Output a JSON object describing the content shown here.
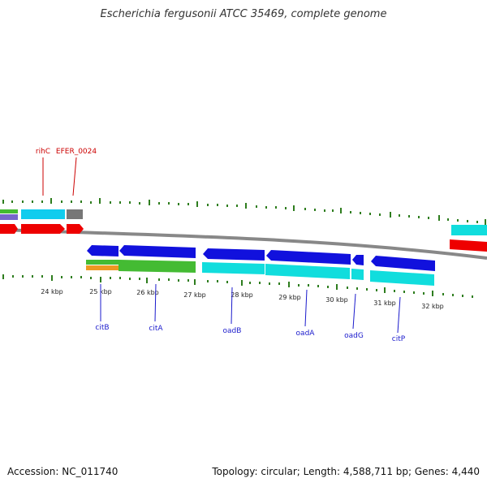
{
  "title": "Escherichia fergusonii ATCC 35469, complete genome",
  "footer": {
    "accession": "Accession: NC_011740",
    "summary": "Topology: circular; Length: 4,588,711 bp; Genes: 4,440"
  },
  "colors": {
    "background": "#ffffff",
    "backbone": "#888888",
    "tick": "#2e7d1e",
    "label_red": "#cc0000",
    "label_blue": "#1a1acc",
    "gene_red": "#ee0000",
    "gene_blue": "#1111dd",
    "gene_cyan": "#11dddd",
    "gene_green": "#44bb33",
    "gene_orange": "#ee9922",
    "gene_purple": "#7766cc",
    "gene_gray": "#777777"
  },
  "ruler": {
    "unit": "kbp",
    "labels": [
      "24 kbp",
      "25 kbp",
      "26 kbp",
      "27 kbp",
      "28 kbp",
      "29 kbp",
      "30 kbp",
      "31 kbp",
      "32 kbp"
    ]
  },
  "gene_labels": [
    {
      "name": "rihC",
      "color": "label_red"
    },
    {
      "name": "EFER_0024",
      "color": "label_red"
    },
    {
      "name": "citB",
      "color": "label_blue"
    },
    {
      "name": "citA",
      "color": "label_blue"
    },
    {
      "name": "oadB",
      "color": "label_blue"
    },
    {
      "name": "oadA",
      "color": "label_blue"
    },
    {
      "name": "oadG",
      "color": "label_blue"
    },
    {
      "name": "citP",
      "color": "label_blue"
    }
  ]
}
